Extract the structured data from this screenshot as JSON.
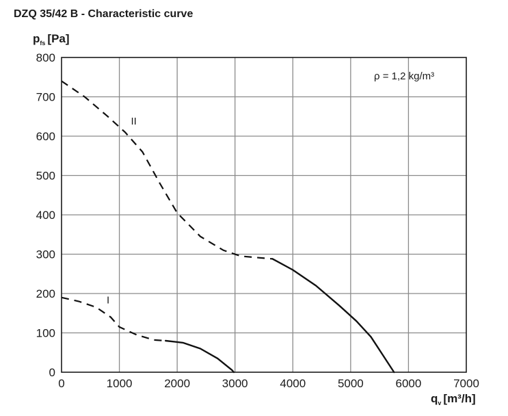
{
  "title": "DZQ 35/42 B - Characteristic curve",
  "chart_data": {
    "type": "line",
    "title": "DZQ 35/42 B - Characteristic curve",
    "ylabel": {
      "main": "p",
      "sub": "fs",
      "unit": "[Pa]"
    },
    "xlabel": {
      "main": "q",
      "sub": "v",
      "unit": "[m³/h]"
    },
    "xlim": [
      0,
      7000
    ],
    "ylim": [
      0,
      800
    ],
    "xticks": [
      0,
      1000,
      2000,
      3000,
      4000,
      5000,
      6000,
      7000
    ],
    "yticks": [
      0,
      100,
      200,
      300,
      400,
      500,
      600,
      700,
      800
    ],
    "xtick_labels": [
      "0",
      "1000",
      "2000",
      "3000",
      "4000",
      "5000",
      "6000",
      "7000"
    ],
    "ytick_labels": [
      "0",
      "100",
      "200",
      "300",
      "400",
      "500",
      "600",
      "700",
      "800"
    ],
    "grid": true,
    "annotation": "ρ = 1,2 kg/m³",
    "series": [
      {
        "name": "II",
        "dashed": [
          [
            0,
            740
          ],
          [
            400,
            700
          ],
          [
            800,
            650
          ],
          [
            1100,
            610
          ],
          [
            1400,
            560
          ],
          [
            1700,
            480
          ],
          [
            2000,
            405
          ],
          [
            2400,
            345
          ],
          [
            2800,
            310
          ],
          [
            3100,
            295
          ],
          [
            3650,
            288
          ]
        ],
        "solid": [
          [
            3650,
            288
          ],
          [
            4000,
            260
          ],
          [
            4400,
            220
          ],
          [
            4800,
            170
          ],
          [
            5100,
            130
          ],
          [
            5350,
            90
          ],
          [
            5550,
            45
          ],
          [
            5750,
            0
          ]
        ]
      },
      {
        "name": "I",
        "dashed": [
          [
            0,
            190
          ],
          [
            300,
            180
          ],
          [
            600,
            165
          ],
          [
            850,
            140
          ],
          [
            1000,
            115
          ],
          [
            1300,
            95
          ],
          [
            1600,
            82
          ],
          [
            1800,
            80
          ]
        ],
        "solid": [
          [
            1800,
            80
          ],
          [
            2100,
            75
          ],
          [
            2400,
            60
          ],
          [
            2700,
            35
          ],
          [
            2950,
            5
          ],
          [
            2980,
            0
          ]
        ]
      }
    ],
    "series_labels": [
      {
        "text": "II",
        "x": 1200,
        "y": 630
      },
      {
        "text": "I",
        "x": 780,
        "y": 175
      }
    ],
    "colors": {
      "line": "#111111",
      "grid": "#8a8a8a"
    }
  }
}
